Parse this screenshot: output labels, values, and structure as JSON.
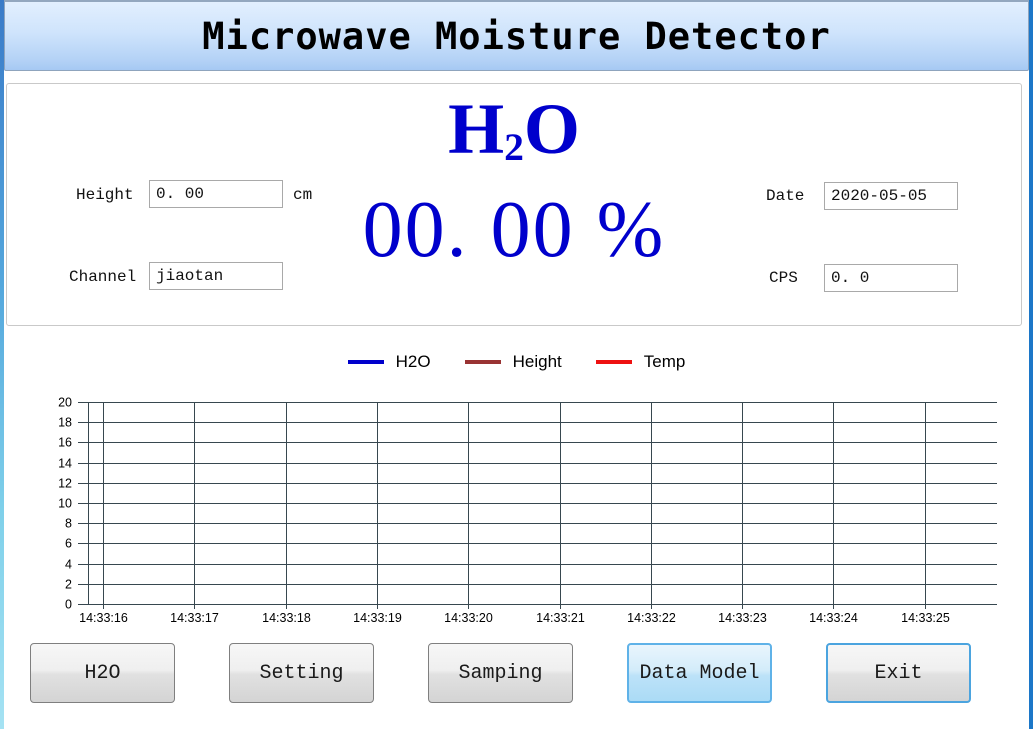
{
  "window": {
    "title": "Microwave Moisture Detector"
  },
  "colors": {
    "readout_accent": "#0000cc",
    "window_border_blue": "#1c77c8",
    "active_button_blue": "#5fb2e8"
  },
  "readout": {
    "formula": {
      "prefix": "H",
      "sub": "2",
      "suffix": "O"
    },
    "value": "00. 00 %"
  },
  "fields": {
    "height": {
      "label": "Height",
      "value": "0. 00",
      "unit": "cm"
    },
    "channel": {
      "label": "Channel",
      "value": "jiaotan"
    },
    "date": {
      "label": "Date",
      "value": "2020-05-05"
    },
    "cps": {
      "label": "CPS",
      "value": "0. 0"
    }
  },
  "legend": [
    {
      "label": "H2O",
      "color": "#0000cc"
    },
    {
      "label": "Height",
      "color": "#993333"
    },
    {
      "label": "Temp",
      "color": "#ee1111"
    }
  ],
  "chart_data": {
    "type": "line",
    "title": "",
    "xlabel": "",
    "ylabel": "",
    "x_labels": [
      "14:33:16",
      "14:33:17",
      "14:33:18",
      "14:33:19",
      "14:33:20",
      "14:33:21",
      "14:33:22",
      "14:33:23",
      "14:33:24",
      "14:33:25"
    ],
    "y_ticks": [
      0,
      2,
      4,
      6,
      8,
      10,
      12,
      14,
      16,
      18,
      20
    ],
    "ylim": [
      0,
      20
    ],
    "grid": true,
    "legend_position": "top",
    "series": [
      {
        "name": "H2O",
        "color": "#0000cc",
        "values": []
      },
      {
        "name": "Height",
        "color": "#993333",
        "values": []
      },
      {
        "name": "Temp",
        "color": "#ee1111",
        "values": []
      }
    ]
  },
  "buttons": [
    {
      "label": "H2O"
    },
    {
      "label": "Setting"
    },
    {
      "label": "Samping"
    },
    {
      "label": "Data Model"
    },
    {
      "label": "Exit"
    }
  ]
}
